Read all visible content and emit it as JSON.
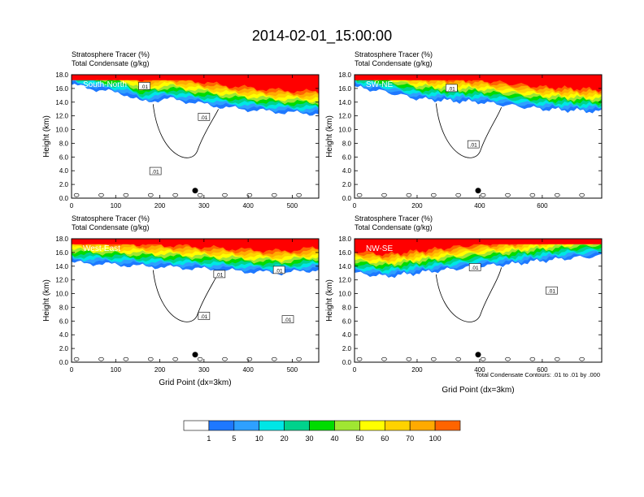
{
  "title": "2014-02-01_15:00:00",
  "footnote": "Total Condensate Contours: .01 to .01 by .000",
  "colors": {
    "scale": [
      "#ffffff",
      "#1e78ff",
      "#2ea0ff",
      "#00e6e6",
      "#00d28c",
      "#00dc00",
      "#a0e632",
      "#ffff00",
      "#ffd200",
      "#ffaa00",
      "#ff6400",
      "#ff0000"
    ]
  },
  "colorbar": {
    "labels": [
      "1",
      "5",
      "10",
      "20",
      "30",
      "40",
      "50",
      "60",
      "70",
      "100"
    ]
  },
  "chart_data": [
    {
      "type": "heatmap",
      "panel_label": "South-North",
      "line1": "Stratosphere Tracer   (%)",
      "line2": "Total Condensate   (g/kg)",
      "ylabel": "Height (km)",
      "xlabel": "",
      "xlim": [
        0,
        560
      ],
      "ylim": [
        0,
        18
      ],
      "xticks": [
        "0",
        "100",
        "200",
        "300",
        "400",
        "500"
      ],
      "xtick_values": [
        0,
        100,
        200,
        300,
        400,
        500
      ],
      "yticks": [
        "0.0",
        "2.0",
        "4.0",
        "6.0",
        "8.0",
        "10.0",
        "12.0",
        "14.0",
        "16.0",
        "18.0"
      ],
      "contour_labels": [
        ".01",
        ".01",
        ".01"
      ],
      "contour_label_pos": [
        [
          165,
          16.3
        ],
        [
          300,
          11.8
        ],
        [
          190,
          3.9
        ]
      ],
      "marker": {
        "x": 280,
        "y": 1.1
      },
      "top_profile": [
        [
          0,
          16.5
        ],
        [
          60,
          15.8
        ],
        [
          120,
          15.2
        ],
        [
          160,
          14.0
        ],
        [
          220,
          14.5
        ],
        [
          290,
          13.8
        ],
        [
          350,
          13.2
        ],
        [
          420,
          12.8
        ],
        [
          480,
          12.5
        ],
        [
          560,
          12.3
        ]
      ]
    },
    {
      "type": "heatmap",
      "panel_label": "SW-NE",
      "line1": "Stratosphere Tracer   (%)",
      "line2": "Total Condensate   (g/kg)",
      "ylabel": "Height (km)",
      "xlabel": "",
      "xlim": [
        0,
        790
      ],
      "ylim": [
        0,
        18
      ],
      "xticks": [
        "0",
        "200",
        "400",
        "600"
      ],
      "xtick_values": [
        0,
        200,
        400,
        600
      ],
      "yticks": [
        "0.0",
        "2.0",
        "4.0",
        "6.0",
        "8.0",
        "10.0",
        "12.0",
        "14.0",
        "16.0",
        "18.0"
      ],
      "contour_labels": [
        ".01",
        ".01"
      ],
      "contour_label_pos": [
        [
          310,
          16.0
        ],
        [
          380,
          7.8
        ]
      ],
      "marker": {
        "x": 395,
        "y": 1.1
      },
      "top_profile": [
        [
          0,
          16.2
        ],
        [
          100,
          15.5
        ],
        [
          200,
          14.5
        ],
        [
          300,
          14.2
        ],
        [
          400,
          14.0
        ],
        [
          500,
          13.5
        ],
        [
          600,
          13.0
        ],
        [
          700,
          12.8
        ],
        [
          790,
          12.6
        ]
      ]
    },
    {
      "type": "heatmap",
      "panel_label": "West-East",
      "line1": "Stratosphere Tracer   (%)",
      "line2": "Total Condensate   (g/kg)",
      "ylabel": "Height (km)",
      "xlabel": "Grid Point (dx=3km)",
      "xlim": [
        0,
        560
      ],
      "ylim": [
        0,
        18
      ],
      "xticks": [
        "0",
        "100",
        "200",
        "300",
        "400",
        "500"
      ],
      "xtick_values": [
        0,
        100,
        200,
        300,
        400,
        500
      ],
      "yticks": [
        "0.0",
        "2.0",
        "4.0",
        "6.0",
        "8.0",
        "10.0",
        "12.0",
        "14.0",
        "16.0",
        "18.0"
      ],
      "contour_labels": [
        ".01",
        ".01",
        ".01",
        ".01"
      ],
      "contour_label_pos": [
        [
          335,
          12.8
        ],
        [
          300,
          6.7
        ],
        [
          470,
          13.4
        ],
        [
          490,
          6.2
        ]
      ],
      "marker": {
        "x": 280,
        "y": 1.1
      },
      "top_profile": [
        [
          0,
          14.5
        ],
        [
          80,
          14.3
        ],
        [
          160,
          14.0
        ],
        [
          240,
          13.8
        ],
        [
          320,
          13.5
        ],
        [
          400,
          13.2
        ],
        [
          480,
          13.0
        ],
        [
          560,
          13.5
        ]
      ]
    },
    {
      "type": "heatmap",
      "panel_label": "NW-SE",
      "line1": "Stratosphere Tracer   (%)",
      "line2": "Total Condensate   (g/kg)",
      "ylabel": "Height (km)",
      "xlabel": "Grid Point (dx=3km)",
      "xlim": [
        0,
        790
      ],
      "ylim": [
        0,
        18
      ],
      "xticks": [
        "0",
        "200",
        "400",
        "600"
      ],
      "xtick_values": [
        0,
        200,
        400,
        600
      ],
      "yticks": [
        "0.0",
        "2.0",
        "4.0",
        "6.0",
        "8.0",
        "10.0",
        "12.0",
        "14.0",
        "16.0",
        "18.0"
      ],
      "contour_labels": [
        ".01",
        ".01"
      ],
      "contour_label_pos": [
        [
          385,
          13.8
        ],
        [
          630,
          10.4
        ]
      ],
      "marker": {
        "x": 395,
        "y": 1.1
      },
      "top_profile": [
        [
          0,
          13.0
        ],
        [
          100,
          12.5
        ],
        [
          200,
          13.0
        ],
        [
          300,
          13.5
        ],
        [
          400,
          14.0
        ],
        [
          500,
          14.3
        ],
        [
          600,
          14.8
        ],
        [
          700,
          15.2
        ],
        [
          790,
          15.5
        ]
      ]
    }
  ]
}
